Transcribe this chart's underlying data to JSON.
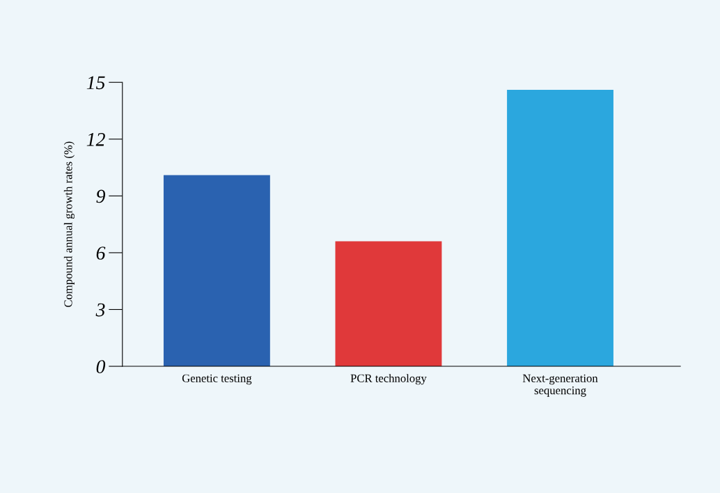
{
  "chart_data": {
    "type": "bar",
    "ylabel": "Compound annual growth rates (%)",
    "categories": [
      "Genetic testing",
      "PCR technology",
      "Next-generation\nsequencing"
    ],
    "values": [
      10.1,
      6.6,
      14.6
    ],
    "colors": [
      "#2a62b0",
      "#e0393a",
      "#2ba7de"
    ],
    "ylim": [
      0,
      15
    ],
    "yticks": [
      0,
      3,
      6,
      9,
      12,
      15
    ],
    "grid": false
  }
}
